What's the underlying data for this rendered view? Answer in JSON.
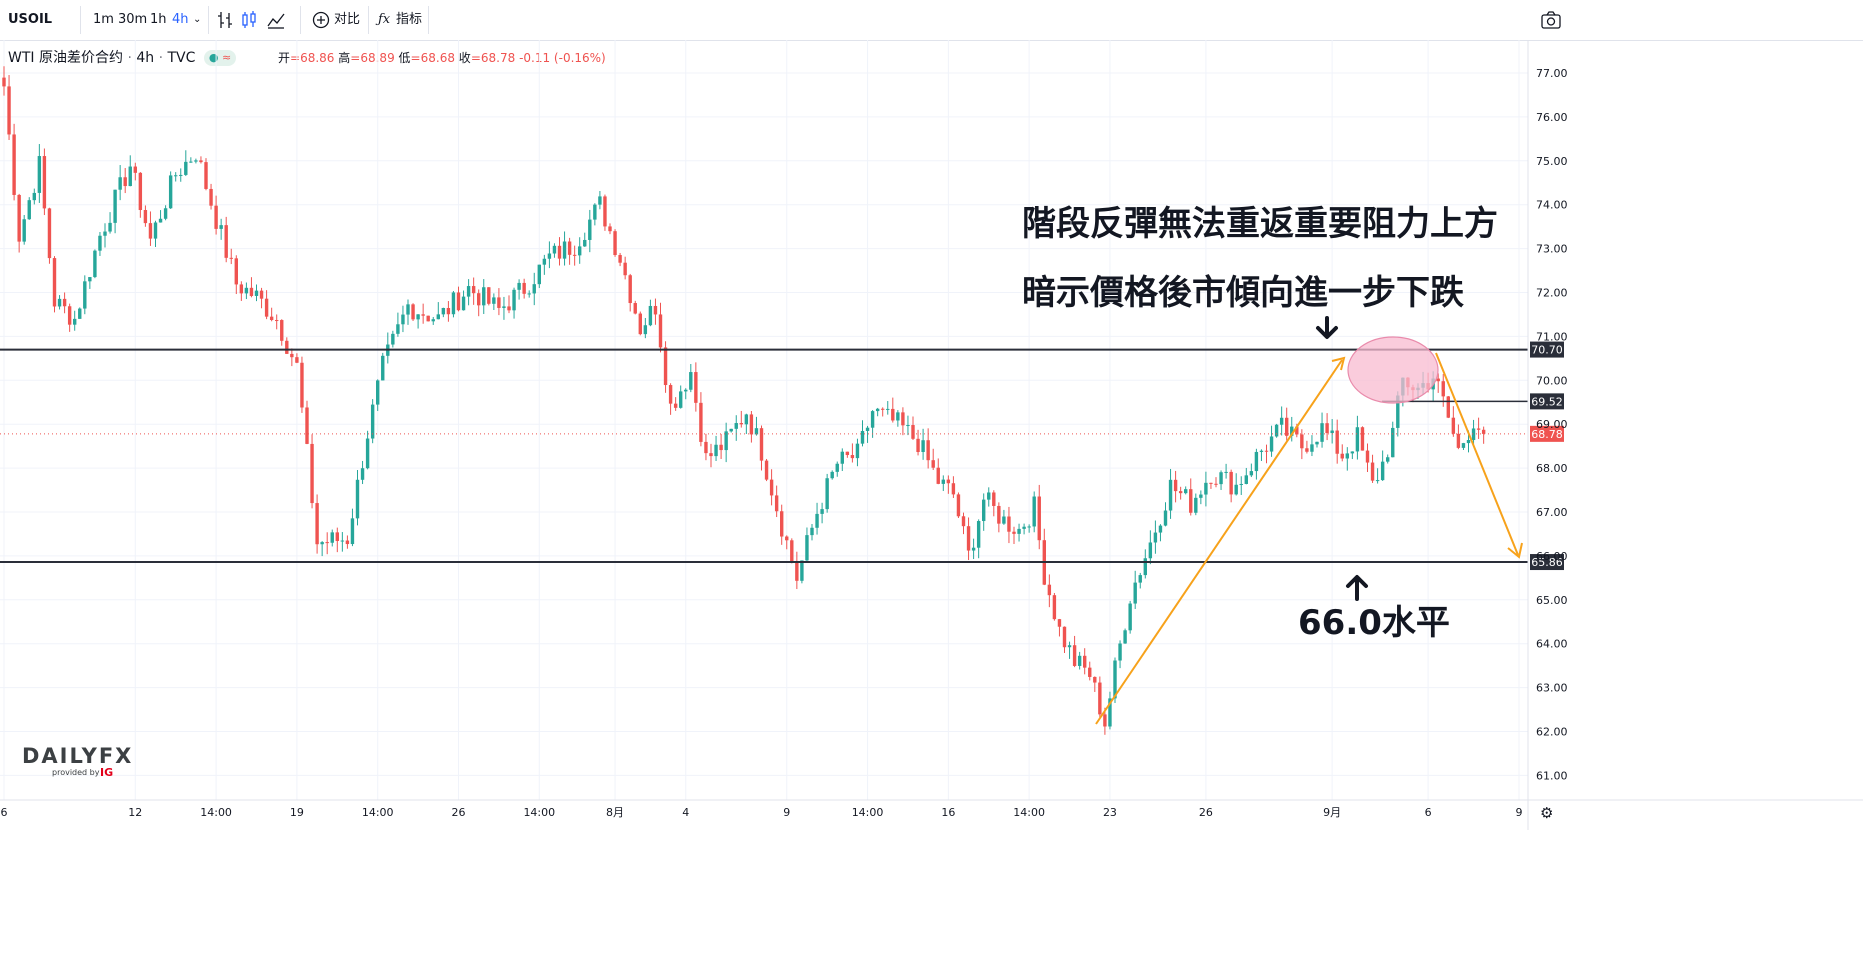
{
  "toolbar": {
    "symbol": "USOIL",
    "intervals": [
      "1m",
      "30m",
      "1h",
      "4h"
    ],
    "active_interval": "4h",
    "compare_label": "对比",
    "indicators_label": "指标"
  },
  "legend": {
    "title": "WTI 原油差价合约",
    "interval": "4h",
    "source": "TVC",
    "ohlc": {
      "open_label": "开",
      "open": "68.86",
      "high_label": "高",
      "high": "68.89",
      "low_label": "低",
      "low": "68.68",
      "close_label": "收",
      "close": "68.78",
      "change": "-0.11 (-0.16%)"
    }
  },
  "colors": {
    "up": "#26a69a",
    "down": "#ef5350",
    "level_line": "#2a2e39",
    "arrow": "#f7a21b",
    "highlight": "#f8bbd0",
    "selected": "#2962ff"
  },
  "chart_data": {
    "type": "candlestick",
    "title": "WTI 原油差价合约",
    "ylim": [
      60.5,
      77.5
    ],
    "y_ticks": [
      "77.00",
      "76.00",
      "75.00",
      "74.00",
      "73.00",
      "72.00",
      "71.00",
      "70.00",
      "69.00",
      "68.00",
      "67.00",
      "66.00",
      "65.00",
      "64.00",
      "63.00",
      "62.00",
      "61.00"
    ],
    "x_ticks": [
      {
        "label": "6",
        "bar": 0
      },
      {
        "label": "12",
        "bar": 26
      },
      {
        "label": "14:00",
        "bar": 42
      },
      {
        "label": "19",
        "bar": 58
      },
      {
        "label": "14:00",
        "bar": 74
      },
      {
        "label": "26",
        "bar": 90
      },
      {
        "label": "14:00",
        "bar": 106
      },
      {
        "label": "8月",
        "bar": 121
      },
      {
        "label": "4",
        "bar": 135
      },
      {
        "label": "9",
        "bar": 155
      },
      {
        "label": "14:00",
        "bar": 171
      },
      {
        "label": "16",
        "bar": 187
      },
      {
        "label": "14:00",
        "bar": 203
      },
      {
        "label": "23",
        "bar": 219
      },
      {
        "label": "26",
        "bar": 238
      },
      {
        "label": "9月",
        "bar": 263
      },
      {
        "label": "6",
        "bar": 282
      },
      {
        "label": "9",
        "bar": 300
      }
    ],
    "price_levels": [
      {
        "label": "70.70",
        "value": 70.7
      },
      {
        "label": "65.86",
        "value": 65.86
      }
    ],
    "side_tags": [
      {
        "label": "69.52",
        "value": 69.52
      },
      {
        "label": "68.78",
        "value": 68.78
      }
    ],
    "last_price": 68.78,
    "anchors": [
      {
        "bar": 0,
        "price": 76.7
      },
      {
        "bar": 3,
        "price": 73.3
      },
      {
        "bar": 7,
        "price": 74.9
      },
      {
        "bar": 10,
        "price": 71.8
      },
      {
        "bar": 14,
        "price": 71.4
      },
      {
        "bar": 19,
        "price": 73.3
      },
      {
        "bar": 25,
        "price": 74.9
      },
      {
        "bar": 29,
        "price": 73.2
      },
      {
        "bar": 34,
        "price": 74.7
      },
      {
        "bar": 38,
        "price": 75.2
      },
      {
        "bar": 43,
        "price": 73.3
      },
      {
        "bar": 46,
        "price": 72.2
      },
      {
        "bar": 50,
        "price": 71.9
      },
      {
        "bar": 54,
        "price": 71.4
      },
      {
        "bar": 58,
        "price": 70.3
      },
      {
        "bar": 62,
        "price": 66.3
      },
      {
        "bar": 68,
        "price": 66.4
      },
      {
        "bar": 72,
        "price": 68.8
      },
      {
        "bar": 75,
        "price": 70.3
      },
      {
        "bar": 80,
        "price": 71.7
      },
      {
        "bar": 86,
        "price": 71.4
      },
      {
        "bar": 92,
        "price": 72.1
      },
      {
        "bar": 98,
        "price": 71.6
      },
      {
        "bar": 103,
        "price": 72.1
      },
      {
        "bar": 108,
        "price": 72.8
      },
      {
        "bar": 113,
        "price": 73.1
      },
      {
        "bar": 118,
        "price": 74.0
      },
      {
        "bar": 122,
        "price": 72.8
      },
      {
        "bar": 126,
        "price": 71.2
      },
      {
        "bar": 129,
        "price": 71.7
      },
      {
        "bar": 132,
        "price": 69.4
      },
      {
        "bar": 136,
        "price": 70.2
      },
      {
        "bar": 139,
        "price": 68.2
      },
      {
        "bar": 143,
        "price": 68.6
      },
      {
        "bar": 147,
        "price": 69.3
      },
      {
        "bar": 150,
        "price": 68.4
      },
      {
        "bar": 154,
        "price": 66.7
      },
      {
        "bar": 157,
        "price": 65.5
      },
      {
        "bar": 161,
        "price": 67.0
      },
      {
        "bar": 165,
        "price": 68.1
      },
      {
        "bar": 169,
        "price": 68.3
      },
      {
        "bar": 172,
        "price": 69.3
      },
      {
        "bar": 177,
        "price": 69.0
      },
      {
        "bar": 181,
        "price": 68.6
      },
      {
        "bar": 185,
        "price": 67.7
      },
      {
        "bar": 188,
        "price": 67.4
      },
      {
        "bar": 191,
        "price": 66.0
      },
      {
        "bar": 194,
        "price": 67.3
      },
      {
        "bar": 198,
        "price": 66.8
      },
      {
        "bar": 201,
        "price": 66.6
      },
      {
        "bar": 204,
        "price": 67.1
      },
      {
        "bar": 206,
        "price": 65.6
      },
      {
        "bar": 209,
        "price": 64.3
      },
      {
        "bar": 212,
        "price": 63.6
      },
      {
        "bar": 215,
        "price": 63.3
      },
      {
        "bar": 218,
        "price": 62.2
      },
      {
        "bar": 220,
        "price": 63.4
      },
      {
        "bar": 223,
        "price": 65.1
      },
      {
        "bar": 227,
        "price": 66.3
      },
      {
        "bar": 231,
        "price": 67.6
      },
      {
        "bar": 235,
        "price": 67.2
      },
      {
        "bar": 239,
        "price": 67.9
      },
      {
        "bar": 244,
        "price": 67.6
      },
      {
        "bar": 249,
        "price": 68.4
      },
      {
        "bar": 253,
        "price": 68.9
      },
      {
        "bar": 257,
        "price": 68.5
      },
      {
        "bar": 261,
        "price": 68.9
      },
      {
        "bar": 265,
        "price": 68.3
      },
      {
        "bar": 268,
        "price": 68.7
      },
      {
        "bar": 271,
        "price": 67.6
      },
      {
        "bar": 273,
        "price": 68.1
      },
      {
        "bar": 275,
        "price": 68.8
      },
      {
        "bar": 277,
        "price": 70.0
      },
      {
        "bar": 280,
        "price": 69.8
      },
      {
        "bar": 283,
        "price": 70.1
      },
      {
        "bar": 285,
        "price": 69.5
      },
      {
        "bar": 288,
        "price": 68.4
      },
      {
        "bar": 291,
        "price": 69.1
      },
      {
        "bar": 293,
        "price": 68.78
      }
    ],
    "annotations": [
      "階段反彈無法重返重要阻力上方",
      "暗示價格後市傾向進一步下跌",
      "66.0水平"
    ]
  },
  "watermark": {
    "brand": "DAILYFX",
    "byline": "provided by",
    "sponsor": "IG"
  }
}
